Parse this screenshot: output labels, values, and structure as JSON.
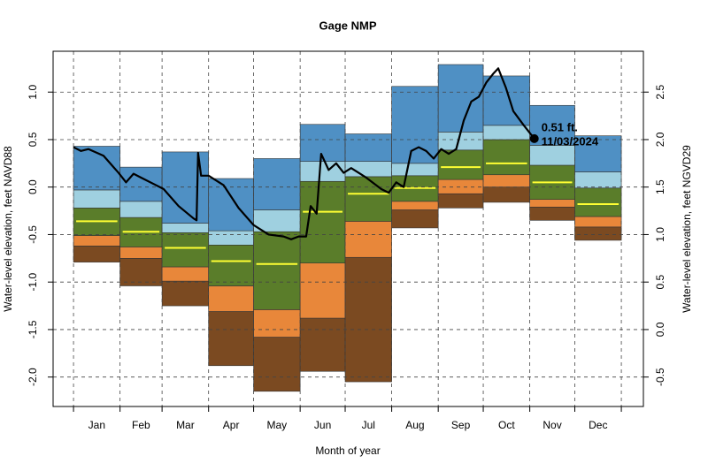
{
  "chart_data": {
    "type": "percentile-bands",
    "title": "Gage NMP",
    "x_label": "Month of year",
    "y_label": "Water-level elevation, feet NAVD88",
    "y2_label": "Water-level elevation, feet NGVD29",
    "categories": [
      "Jan",
      "Feb",
      "Mar",
      "Apr",
      "May",
      "Jun",
      "Jul",
      "Aug",
      "Sep",
      "Oct",
      "Nov",
      "Dec"
    ],
    "xlim": [
      -13.6,
      379.7
    ],
    "xticks": [
      0,
      31,
      59,
      90,
      120,
      151,
      181,
      212,
      243,
      273,
      304,
      334,
      365
    ],
    "ylim": [
      -2.31,
      1.43
    ],
    "yticks": [
      {
        "value": -2.0,
        "label": "-2.0"
      },
      {
        "value": -1.5,
        "label": "-1.5"
      },
      {
        "value": -1.0,
        "label": "-1.0"
      },
      {
        "value": -0.5,
        "label": "-0.5"
      },
      {
        "value": 0.0,
        "label": "0.0"
      },
      {
        "value": 0.5,
        "label": "0.5"
      },
      {
        "value": 1.0,
        "label": "1.0"
      }
    ],
    "y2lim": [
      -0.81,
      2.93
    ],
    "y2ticks": [
      -0.5,
      {
        "value": 0.0,
        "label": "0.0"
      },
      0.5,
      {
        "value": 1.0,
        "label": "1.0"
      },
      1.5,
      {
        "value": 2.0,
        "label": "2.0"
      },
      2.5
    ],
    "grid": true,
    "band_edges": [
      [
        -0.79,
        -1.04,
        -1.25,
        -1.88,
        -2.15,
        -1.94,
        -2.05,
        -0.43,
        -0.22,
        -0.16,
        -0.35,
        -0.56
      ],
      [
        -0.62,
        -0.75,
        -0.99,
        -1.31,
        -1.58,
        -1.38,
        -0.74,
        -0.24,
        -0.07,
        0.0,
        -0.21,
        -0.42
      ],
      [
        -0.51,
        -0.63,
        -0.84,
        -1.04,
        -1.29,
        -0.8,
        -0.36,
        -0.15,
        0.08,
        0.13,
        -0.13,
        -0.31
      ],
      [
        -0.22,
        -0.32,
        -0.48,
        -0.61,
        -0.47,
        0.06,
        0.11,
        0.12,
        0.39,
        0.5,
        0.23,
        -0.01
      ],
      [
        -0.03,
        -0.15,
        -0.38,
        -0.46,
        -0.24,
        0.27,
        0.27,
        0.25,
        0.58,
        0.65,
        0.44,
        0.16
      ],
      [
        0.43,
        0.21,
        0.37,
        0.09,
        0.3,
        0.66,
        0.56,
        1.06,
        1.29,
        1.17,
        0.86,
        0.54
      ]
    ],
    "band_colors": [
      "#7b4a21",
      "#e8873a",
      "#5a7d2a",
      "#9fd0e0",
      "#4f90c4"
    ],
    "median": {
      "color": "#ffff33",
      "values": [
        -0.36,
        -0.47,
        -0.64,
        -0.78,
        -0.81,
        -0.26,
        -0.07,
        -0.01,
        0.21,
        0.25,
        0.05,
        -0.18
      ]
    },
    "line": {
      "color": "#000000",
      "x": [
        0,
        5,
        10,
        20,
        30,
        35,
        40,
        45,
        55,
        60,
        70,
        80,
        82,
        83,
        85,
        90,
        100,
        110,
        120,
        130,
        140,
        145,
        150,
        155,
        158,
        162,
        165,
        170,
        175,
        180,
        185,
        195,
        205,
        210,
        215,
        220,
        225,
        230,
        235,
        240,
        245,
        250,
        255,
        260,
        265,
        270,
        275,
        280,
        283,
        288,
        293,
        300,
        305,
        307
      ],
      "values": [
        0.42,
        0.38,
        0.4,
        0.33,
        0.15,
        0.05,
        0.14,
        0.1,
        0.02,
        -0.02,
        -0.2,
        -0.33,
        -0.35,
        0.36,
        0.12,
        0.12,
        0.02,
        -0.22,
        -0.4,
        -0.5,
        -0.52,
        -0.55,
        -0.52,
        -0.52,
        -0.2,
        -0.28,
        0.35,
        0.18,
        0.25,
        0.15,
        0.2,
        0.1,
        -0.02,
        -0.06,
        0.05,
        0.0,
        0.38,
        0.42,
        0.38,
        0.3,
        0.4,
        0.35,
        0.4,
        0.7,
        0.9,
        0.95,
        1.1,
        1.2,
        1.25,
        1.05,
        0.8,
        0.65,
        0.55,
        0.51
      ]
    },
    "current": {
      "x": 307,
      "value": 0.51,
      "label": "0.51 ft.",
      "date": "11/03/2024"
    }
  }
}
